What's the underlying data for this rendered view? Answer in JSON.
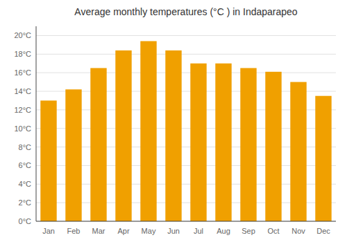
{
  "chart_data": {
    "type": "bar",
    "title": "Average monthly temperatures (°C ) in Indaparapeo",
    "categories": [
      "Jan",
      "Feb",
      "Mar",
      "Apr",
      "May",
      "Jun",
      "Jul",
      "Aug",
      "Sep",
      "Oct",
      "Nov",
      "Dec"
    ],
    "values": [
      13.0,
      14.2,
      16.5,
      18.4,
      19.4,
      18.4,
      17.0,
      17.0,
      16.5,
      16.1,
      15.0,
      13.5
    ],
    "color": "#F0A000",
    "ylim": [
      0,
      21
    ],
    "yticks": [
      {
        "value": 0,
        "label": "0°C"
      },
      {
        "value": 2,
        "label": "2°C"
      },
      {
        "value": 4,
        "label": "4°C"
      },
      {
        "value": 6,
        "label": "6°C"
      },
      {
        "value": 8,
        "label": "8°C"
      },
      {
        "value": 10,
        "label": "10°C"
      },
      {
        "value": 12,
        "label": "12°C"
      },
      {
        "value": 14,
        "label": "14°C"
      },
      {
        "value": 16,
        "label": "16°C"
      },
      {
        "value": 18,
        "label": "18°C"
      },
      {
        "value": 20,
        "label": "20°C"
      }
    ],
    "grid": true
  }
}
